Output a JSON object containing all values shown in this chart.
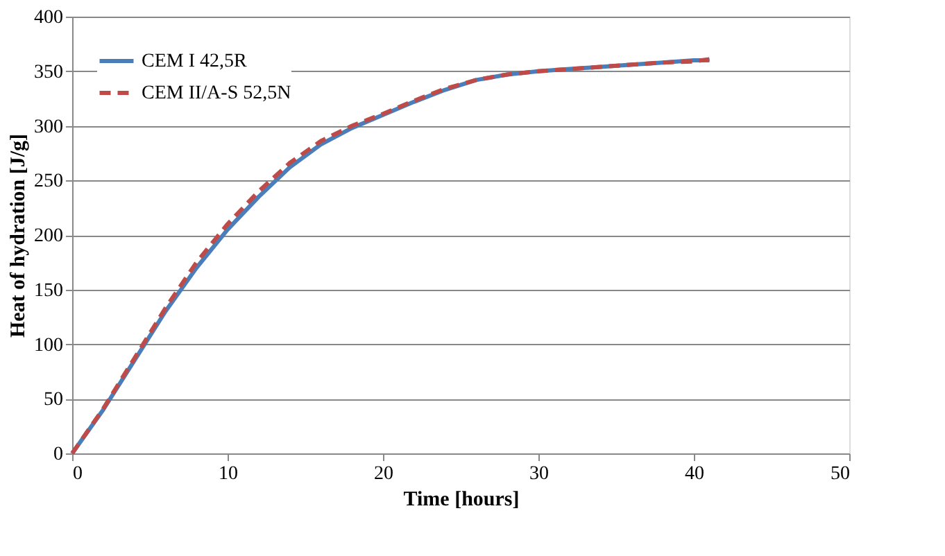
{
  "chart_data": {
    "type": "line",
    "xlabel": "Time [hours]",
    "ylabel": "Heat of hydration  [J/g]",
    "xlim": [
      0,
      50
    ],
    "xticks": [
      0,
      10,
      20,
      30,
      40,
      50
    ],
    "ylim": [
      0,
      400
    ],
    "yticks": [
      0,
      50,
      100,
      150,
      200,
      250,
      300,
      350,
      400
    ],
    "grid": "y",
    "legend": "top left",
    "marker": "none",
    "series": [
      {
        "name": "CEM I 42,5R",
        "color": "#4a7ebb",
        "line_style": "solid",
        "x": [
          0,
          2,
          4,
          6,
          8,
          10,
          12,
          14,
          16,
          18,
          20,
          22,
          24,
          26,
          28,
          30,
          32,
          34,
          36,
          38,
          40,
          41
        ],
        "values": [
          0,
          40,
          85,
          130,
          170,
          205,
          235,
          262,
          283,
          298,
          310,
          322,
          333,
          342,
          347,
          350,
          352,
          354,
          356,
          358,
          360,
          360
        ]
      },
      {
        "name": "CEM II/A-S 52,5N",
        "color": "#be4b48",
        "line_style": "dashed",
        "x": [
          0,
          2,
          4,
          6,
          8,
          10,
          12,
          14,
          16,
          18,
          20,
          22,
          24,
          26,
          28,
          30,
          32,
          34,
          36,
          38,
          40,
          41
        ],
        "values": [
          0,
          41,
          87,
          133,
          175,
          210,
          240,
          266,
          286,
          300,
          311,
          323,
          334,
          342,
          347,
          350,
          352,
          354,
          356,
          358,
          359,
          361
        ]
      }
    ]
  }
}
